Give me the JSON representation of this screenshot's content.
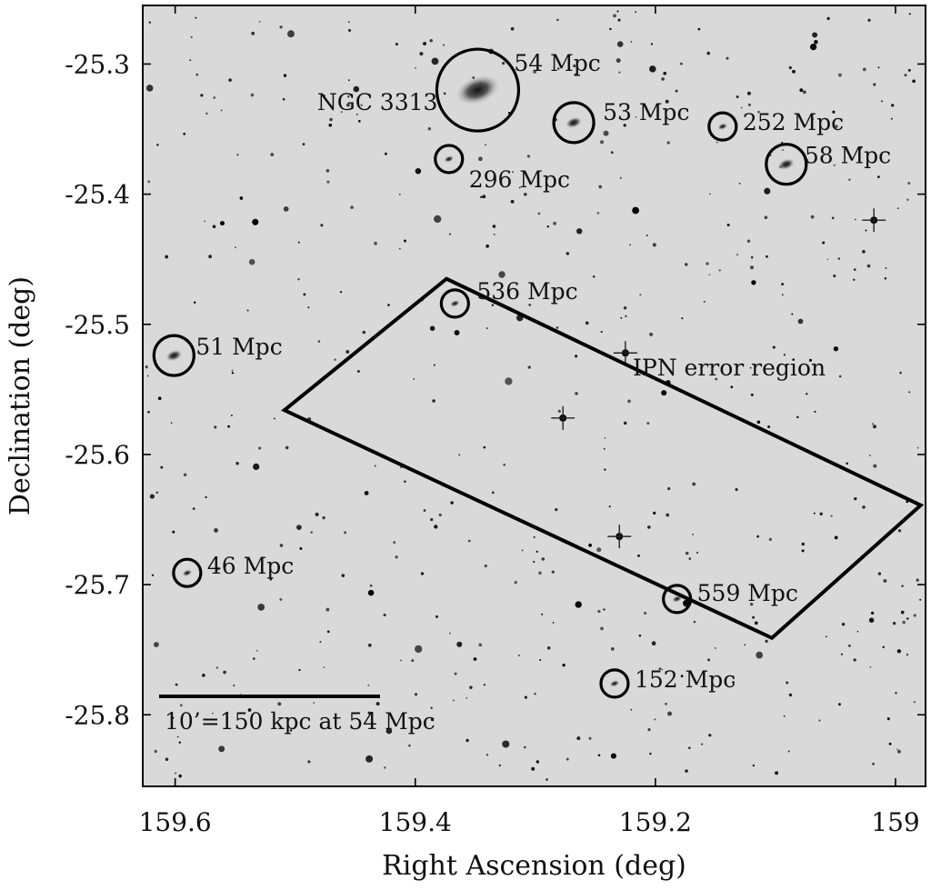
{
  "chart_data": {
    "type": "scatter",
    "xlabel": "Right Ascension (deg)",
    "ylabel": "Declination (deg)",
    "xlim": [
      159.627,
      158.975
    ],
    "ylim": [
      -25.855,
      -25.255
    ],
    "x_reversed": true,
    "grid": false,
    "legend": "none",
    "background": "grayscale sky image (star field)",
    "xticks": [
      {
        "value": 159.6,
        "label": "159.6"
      },
      {
        "value": 159.4,
        "label": "159.4"
      },
      {
        "value": 159.2,
        "label": "159.2"
      },
      {
        "value": 159.0,
        "label": "159"
      }
    ],
    "yticks": [
      {
        "value": -25.3,
        "label": "-25.3"
      },
      {
        "value": -25.4,
        "label": "-25.4"
      },
      {
        "value": -25.5,
        "label": "-25.5"
      },
      {
        "value": -25.6,
        "label": "-25.6"
      },
      {
        "value": -25.7,
        "label": "-25.7"
      },
      {
        "value": -25.8,
        "label": "-25.8"
      }
    ],
    "galaxies": [
      {
        "ra": 159.348,
        "dec": -25.32,
        "label": "54 Mpc",
        "size": "large"
      },
      {
        "ra": 159.372,
        "dec": -25.373,
        "label": "296 Mpc",
        "size": "small"
      },
      {
        "ra": 159.268,
        "dec": -25.345,
        "label": "53 Mpc",
        "size": "medium"
      },
      {
        "ra": 159.144,
        "dec": -25.348,
        "label": "252 Mpc",
        "size": "small"
      },
      {
        "ra": 159.091,
        "dec": -25.377,
        "label": "58 Mpc",
        "size": "medium"
      },
      {
        "ra": 159.367,
        "dec": -25.484,
        "label": "536 Mpc",
        "size": "small"
      },
      {
        "ra": 159.601,
        "dec": -25.524,
        "label": "51 Mpc",
        "size": "medium"
      },
      {
        "ra": 159.59,
        "dec": -25.691,
        "label": "46 Mpc",
        "size": "small"
      },
      {
        "ra": 159.182,
        "dec": -25.711,
        "label": "559 Mpc",
        "size": "small"
      },
      {
        "ra": 159.234,
        "dec": -25.776,
        "label": "152 Mpc",
        "size": "small"
      }
    ],
    "annotations": [
      {
        "text": "NGC 3313"
      },
      {
        "text": "IPN error region"
      },
      {
        "text": "10’=150 kpc at 54 Mpc"
      }
    ],
    "ipn_error_region": [
      [
        159.374,
        -25.465
      ],
      [
        158.979,
        -25.639
      ],
      [
        159.103,
        -25.741
      ],
      [
        159.509,
        -25.566
      ]
    ]
  }
}
